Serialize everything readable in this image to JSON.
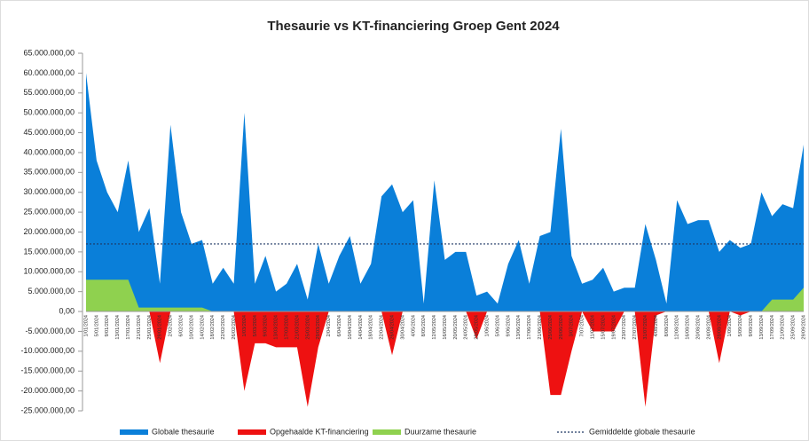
{
  "chart_data": {
    "type": "area",
    "title": "Thesaurie  vs KT-financiering  Groep  Gent 2024",
    "categories": [
      "1/01/2024",
      "5/01/2024",
      "9/01/2024",
      "13/01/2024",
      "17/01/2024",
      "21/01/2024",
      "25/01/2024",
      "29/01/2024",
      "2/02/2024",
      "6/02/2024",
      "10/02/2024",
      "14/02/2024",
      "18/02/2024",
      "22/02/2024",
      "26/02/2024",
      "1/03/2024",
      "5/03/2024",
      "9/03/2024",
      "13/03/2024",
      "17/03/2024",
      "21/03/2024",
      "25/03/2024",
      "29/03/2024",
      "2/04/2024",
      "6/04/2024",
      "10/04/2024",
      "14/04/2024",
      "18/04/2024",
      "22/04/2024",
      "26/04/2024",
      "30/04/2024",
      "4/05/2024",
      "8/05/2024",
      "12/05/2024",
      "16/05/2024",
      "20/05/2024",
      "24/05/2024",
      "28/05/2024",
      "1/06/2024",
      "5/06/2024",
      "9/06/2024",
      "13/06/2024",
      "17/06/2024",
      "21/06/2024",
      "25/06/2024",
      "29/06/2024",
      "3/07/2024",
      "7/07/2024",
      "11/07/2024",
      "15/07/2024",
      "19/07/2024",
      "23/07/2024",
      "27/07/2024",
      "31/07/2024",
      "4/08/2024",
      "8/08/2024",
      "12/08/2024",
      "16/08/2024",
      "20/08/2024",
      "24/08/2024",
      "28/08/2024",
      "1/09/2024",
      "5/09/2024",
      "9/09/2024",
      "13/09/2024",
      "17/09/2024",
      "21/09/2024",
      "25/09/2024",
      "29/09/2024"
    ],
    "series": [
      {
        "name": "Globale thesaurie",
        "color": "#0a7fd9",
        "values": [
          60000000,
          38000000,
          30000000,
          25000000,
          38000000,
          20000000,
          26000000,
          7000000,
          47000000,
          25000000,
          17000000,
          18000000,
          7000000,
          11000000,
          7000000,
          50000000,
          7000000,
          14000000,
          5000000,
          7000000,
          12000000,
          3000000,
          17000000,
          7000000,
          14000000,
          19000000,
          7000000,
          12000000,
          29000000,
          32000000,
          25000000,
          28000000,
          2000000,
          33000000,
          13000000,
          15000000,
          15000000,
          4000000,
          5000000,
          2000000,
          12000000,
          18000000,
          7000000,
          19000000,
          20000000,
          46000000,
          14000000,
          7000000,
          8000000,
          11000000,
          5000000,
          6000000,
          6000000,
          22000000,
          13000000,
          2000000,
          28000000,
          22000000,
          23000000,
          23000000,
          15000000,
          18000000,
          16000000,
          17000000,
          30000000,
          24000000,
          27000000,
          26000000,
          42000000
        ]
      },
      {
        "name": "Opgehaalde KT-financiering",
        "color": "#ee1111",
        "values": [
          0,
          0,
          0,
          0,
          0,
          0,
          0,
          -13000000,
          0,
          0,
          0,
          0,
          0,
          0,
          0,
          -20000000,
          -8000000,
          -8000000,
          -9000000,
          -9000000,
          -9000000,
          -24000000,
          -9000000,
          0,
          0,
          0,
          0,
          0,
          0,
          -11000000,
          0,
          0,
          0,
          0,
          0,
          0,
          0,
          -7000000,
          0,
          0,
          0,
          0,
          0,
          0,
          -21000000,
          -21000000,
          -10000000,
          0,
          -5000000,
          -5000000,
          -5000000,
          0,
          0,
          -24000000,
          -1000000,
          0,
          0,
          0,
          0,
          0,
          -13000000,
          0,
          -1000000,
          0,
          0,
          0,
          0,
          0,
          0
        ]
      },
      {
        "name": "Duurzame thesaurie",
        "color": "#8fd14f",
        "values": [
          8000000,
          8000000,
          8000000,
          8000000,
          8000000,
          1000000,
          1000000,
          1000000,
          1000000,
          1000000,
          1000000,
          1000000,
          0,
          0,
          0,
          0,
          0,
          0,
          0,
          0,
          0,
          0,
          0,
          0,
          0,
          0,
          0,
          0,
          0,
          0,
          0,
          0,
          0,
          0,
          0,
          0,
          0,
          0,
          0,
          0,
          0,
          0,
          0,
          0,
          0,
          0,
          0,
          0,
          0,
          0,
          0,
          0,
          0,
          0,
          0,
          0,
          0,
          0,
          0,
          0,
          0,
          0,
          0,
          0,
          0,
          3000000,
          3000000,
          3000000,
          6000000
        ]
      }
    ],
    "average_line": {
      "name": "Gemiddelde globale thesaurie",
      "color": "#1f3864",
      "value": 17000000
    },
    "ylim": [
      -25000000,
      65000000
    ],
    "yticks": [
      {
        "value": -25000000,
        "label": "-25.000.000,00"
      },
      {
        "value": -20000000,
        "label": "-20.000.000,00"
      },
      {
        "value": -15000000,
        "label": "-15.000.000,00"
      },
      {
        "value": -10000000,
        "label": "-10.000.000,00"
      },
      {
        "value": -5000000,
        "label": "-5.000.000,00"
      },
      {
        "value": 0,
        "label": "0,00"
      },
      {
        "value": 5000000,
        "label": "5.000.000,00"
      },
      {
        "value": 10000000,
        "label": "10.000.000,00"
      },
      {
        "value": 15000000,
        "label": "15.000.000,00"
      },
      {
        "value": 20000000,
        "label": "20.000.000,00"
      },
      {
        "value": 25000000,
        "label": "25.000.000,00"
      },
      {
        "value": 30000000,
        "label": "30.000.000,00"
      },
      {
        "value": 35000000,
        "label": "35.000.000,00"
      },
      {
        "value": 40000000,
        "label": "40.000.000,00"
      },
      {
        "value": 45000000,
        "label": "45.000.000,00"
      },
      {
        "value": 50000000,
        "label": "50.000.000,00"
      },
      {
        "value": 55000000,
        "label": "55.000.000,00"
      },
      {
        "value": 60000000,
        "label": "60.000.000,00"
      },
      {
        "value": 65000000,
        "label": "65.000.000,00"
      }
    ],
    "legend": "bottom"
  }
}
